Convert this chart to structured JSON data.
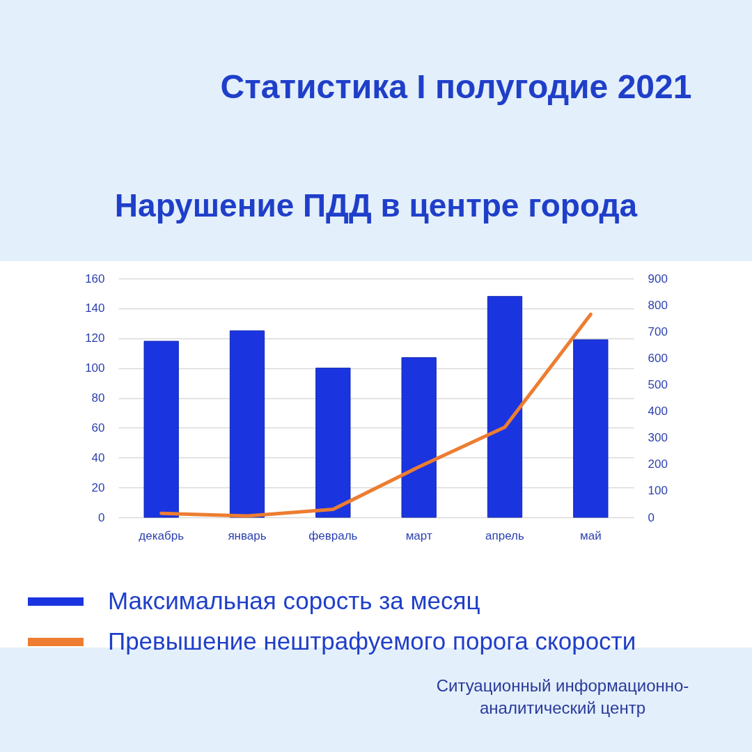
{
  "chart_data": {
    "type": "bar",
    "title": "Статистика I полугодие 2021",
    "subtitle": "Нарушение ПДД в центре города",
    "categories": [
      "декабрь",
      "январь",
      "февраль",
      "март",
      "апрель",
      "май"
    ],
    "series": [
      {
        "name": "Максимальная сорость за месяц",
        "color": "#1a35e0",
        "values": [
          118,
          125,
          100,
          107,
          148,
          119
        ]
      },
      {
        "name": "Превышение нештрафуемого порога скорости",
        "type": "line",
        "axis": "y2",
        "color": "#ed7d31",
        "values": [
          15,
          5,
          30,
          190,
          340,
          765
        ]
      }
    ],
    "ylim": [
      0,
      160
    ],
    "yticks": [
      0,
      20,
      40,
      60,
      80,
      100,
      120,
      140,
      160
    ],
    "y2lim": [
      0,
      900
    ],
    "y2ticks": [
      0,
      100,
      200,
      300,
      400,
      500,
      600,
      700,
      800,
      900
    ],
    "grid": "y",
    "legend": "bottom",
    "line_style": "solid",
    "annotations": [
      "Ситуационный информационно-аналитический центр"
    ]
  }
}
